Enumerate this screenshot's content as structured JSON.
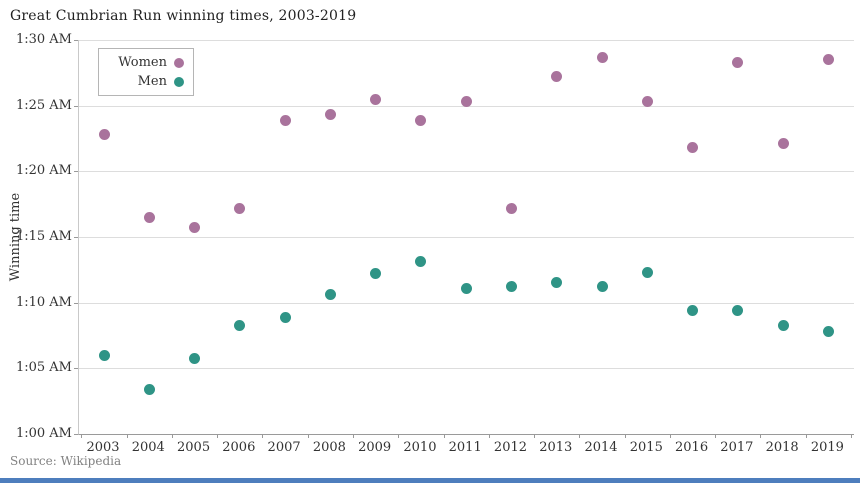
{
  "title": "Great Cumbrian Run winning times, 2003-2019",
  "source_note": "Source: Wikipedia",
  "colors": {
    "women": "#a9739c",
    "men": "#2f9486",
    "gridline": "#dddddd",
    "axis": "#9a9a9a",
    "bottom_bar": "#4e7ebd"
  },
  "legend": {
    "items": [
      {
        "label": "Women",
        "color": "#a9739c"
      },
      {
        "label": "Men",
        "color": "#2f9486"
      }
    ]
  },
  "chart_data": {
    "type": "scatter",
    "title": "Great Cumbrian Run winning times, 2003-2019",
    "xlabel": "",
    "ylabel": "Winning time",
    "x_categories": [
      2003,
      2004,
      2005,
      2006,
      2007,
      2008,
      2009,
      2010,
      2011,
      2012,
      2013,
      2014,
      2015,
      2016,
      2017,
      2018,
      2019
    ],
    "y_tick_labels_bottom_to_top": [
      "1:00 AM",
      "1:05 AM",
      "1:10 AM",
      "1:15 AM",
      "1:20 AM",
      "1:25 AM",
      "1:30 AM"
    ],
    "y_units": "minutes after 1:00",
    "ylim_minutes": [
      0,
      30
    ],
    "grid": true,
    "legend_position": "top-left-inside",
    "series": [
      {
        "name": "Women",
        "color": "#a9739c",
        "values_minutes": [
          22.8,
          16.45,
          15.75,
          17.2,
          23.9,
          24.35,
          25.5,
          23.85,
          25.3,
          17.15,
          27.2,
          28.7,
          25.35,
          21.8,
          28.25,
          22.1,
          28.5
        ]
      },
      {
        "name": "Men",
        "color": "#2f9486",
        "values_minutes": [
          6.0,
          3.4,
          5.75,
          8.25,
          8.9,
          10.6,
          12.2,
          13.1,
          11.1,
          11.2,
          11.5,
          11.25,
          12.3,
          9.4,
          9.4,
          8.25,
          7.8
        ]
      }
    ]
  }
}
